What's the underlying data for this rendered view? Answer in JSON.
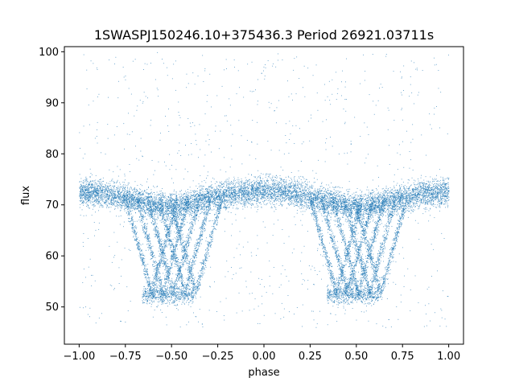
{
  "chart_data": {
    "type": "scatter",
    "title": "1SWASPJ150246.10+375436.3 Period 26921.03711s",
    "xlabel": "phase",
    "ylabel": "flux",
    "xlim": [
      -1.08,
      1.08
    ],
    "ylim": [
      42.7,
      101.0
    ],
    "xticks": [
      -1.0,
      -0.75,
      -0.5,
      -0.25,
      0.0,
      0.25,
      0.5,
      0.75,
      1.0
    ],
    "xtick_labels": [
      "−1.00",
      "−0.75",
      "−0.50",
      "−0.25",
      "0.00",
      "0.25",
      "0.50",
      "0.75",
      "1.00"
    ],
    "yticks": [
      50,
      60,
      70,
      80,
      90,
      100
    ],
    "ytick_labels": [
      "50",
      "60",
      "70",
      "80",
      "90",
      "100"
    ],
    "grid": false,
    "legend": "none",
    "marker_color": "#1f77b4",
    "series": [
      {
        "description_points": "folded light curve, phase vs flux",
        "baseline_flux": 72.5,
        "eclipse_minimum_flux": 52,
        "eclipse_centres_phase": [
          -0.5,
          0.5
        ],
        "eclipse_track_phase_range": [
          -0.68,
          -0.3
        ],
        "x": [
          -1.0,
          -0.95,
          -0.9,
          -0.85,
          -0.8,
          -0.75,
          -0.7,
          -0.65,
          -0.6,
          -0.55,
          -0.5,
          -0.45,
          -0.4,
          -0.35,
          -0.3,
          -0.25,
          -0.2,
          -0.15,
          -0.1,
          -0.05,
          0.0,
          0.05,
          0.1,
          0.15,
          0.2,
          0.25,
          0.3,
          0.35,
          0.4,
          0.45,
          0.5,
          0.55,
          0.6,
          0.65,
          0.7,
          0.75,
          0.8,
          0.85,
          0.9,
          0.95,
          1.0
        ],
        "y": [
          72.5,
          72.4,
          72.3,
          72.0,
          71.8,
          71.4,
          71.0,
          70.6,
          70.2,
          69.8,
          69.5,
          69.8,
          70.3,
          70.9,
          71.3,
          71.6,
          71.9,
          72.1,
          72.4,
          72.7,
          72.9,
          72.8,
          72.6,
          72.3,
          72.0,
          71.6,
          71.2,
          70.8,
          70.3,
          69.8,
          69.5,
          69.7,
          70.0,
          70.5,
          71.0,
          71.4,
          71.8,
          72.1,
          72.3,
          72.5,
          72.6
        ]
      }
    ]
  }
}
